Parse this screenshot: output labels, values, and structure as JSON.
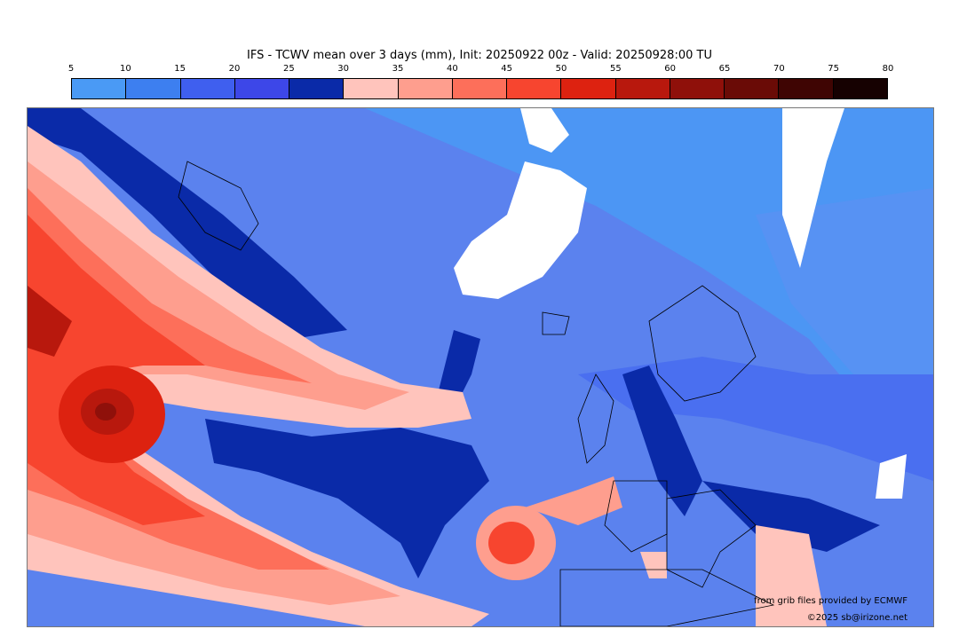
{
  "map": {
    "title": "IFS - TCWV mean over 3 days (mm), Init: 20250922 00z - Valid: 20250928:00 TU",
    "colorbar": {
      "ticks": [
        "5",
        "10",
        "15",
        "20",
        "25",
        "30",
        "35",
        "40",
        "45",
        "50",
        "55",
        "60",
        "65",
        "70",
        "75",
        "80"
      ],
      "colors": [
        "#4a9af5",
        "#3d7ff0",
        "#3f5fef",
        "#3d47e8",
        "#0a2aa8",
        "#ffc4bc",
        "#fe9e8e",
        "#fd6f5a",
        "#f7452f",
        "#dd2210",
        "#b8180d",
        "#8f100a",
        "#6a0b06",
        "#3f0503",
        "#160101"
      ]
    },
    "credits": {
      "line1": "from grib files provided by ECMWF",
      "line2": "©2025 sb@irizone.net"
    }
  }
}
